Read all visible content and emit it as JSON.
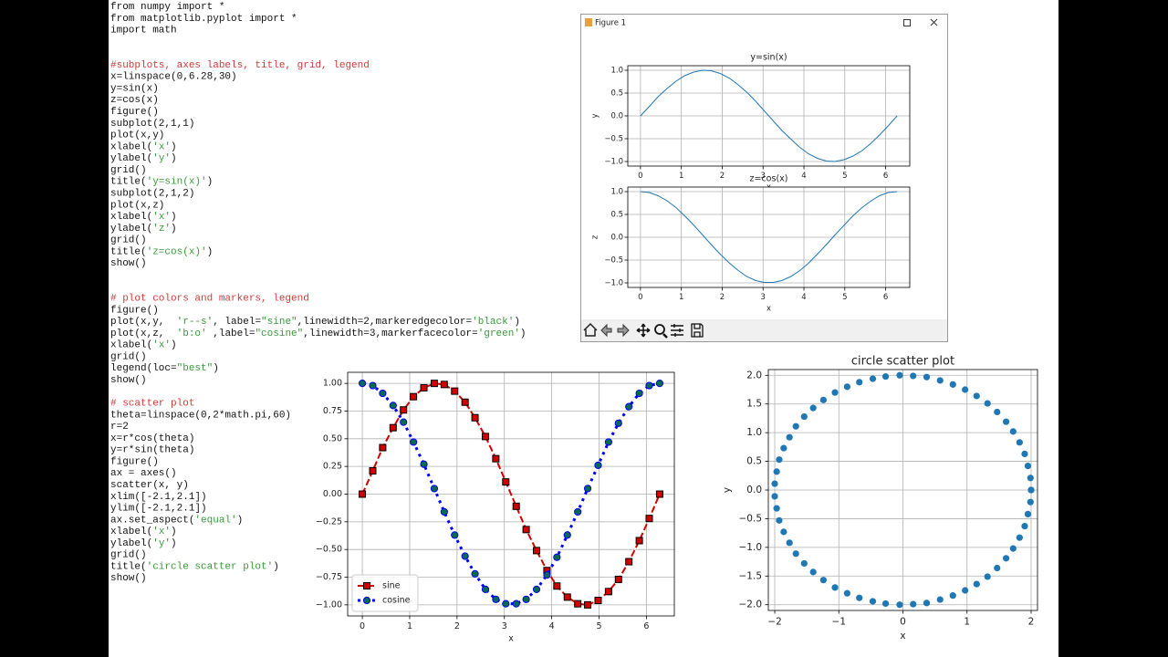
{
  "code": {
    "blocks": [
      [
        "from numpy import *",
        "from matplotlib.pyplot import *",
        "import math"
      ],
      [
        "#subplots, axes labels, title, grid, legend",
        "x=linspace(0,6.28,30)",
        "y=sin(x)",
        "z=cos(x)",
        "figure()",
        "subplot(2,1,1)",
        "plot(x,y)",
        "xlabel('x')",
        "ylabel('y')",
        "grid()",
        "title('y=sin(x)')",
        "subplot(2,1,2)",
        "plot(x,z)",
        "xlabel('x')",
        "ylabel('z')",
        "grid()",
        "title('z=cos(x)')",
        "show()"
      ],
      [
        "# plot colors and markers, legend",
        "figure()",
        "plot(x,y,  'r--s', label=\"sine\",linewidth=2,markeredgecolor='black')",
        "plot(x,z,  'b:o' ,label=\"cosine\",linewidth=3,markerfacecolor='green')",
        "xlabel('x')",
        "grid()",
        "legend(loc=\"best\")",
        "show()"
      ],
      [
        "# scatter plot",
        "theta=linspace(0,2*math.pi,60)",
        "r=2",
        "x=r*cos(theta)",
        "y=r*sin(theta)",
        "figure()",
        "ax = axes()",
        "scatter(x, y)",
        "xlim([-2.1,2.1])",
        "ylim([-2.1,2.1])",
        "ax.set_aspect('equal')",
        "xlabel('x')",
        "ylabel('y')",
        "grid()",
        "title('circle scatter plot')",
        "show()"
      ]
    ]
  },
  "window": {
    "title": "Figure 1"
  },
  "chart_data": [
    {
      "type": "line",
      "title": "y=sin(x)",
      "xlabel": "x",
      "ylabel": "y",
      "x": [
        0.0,
        0.22,
        0.43,
        0.65,
        0.87,
        1.08,
        1.3,
        1.52,
        1.73,
        1.95,
        2.17,
        2.38,
        2.6,
        2.82,
        3.03,
        3.25,
        3.46,
        3.68,
        3.9,
        4.11,
        4.33,
        4.55,
        4.76,
        4.98,
        5.2,
        5.41,
        5.63,
        5.85,
        6.06,
        6.28
      ],
      "series": [
        {
          "color": "#1f77b4",
          "linestyle": "solid",
          "linewidth": 1,
          "values": [
            0.0,
            0.21,
            0.42,
            0.6,
            0.76,
            0.88,
            0.96,
            1.0,
            0.99,
            0.93,
            0.83,
            0.69,
            0.52,
            0.32,
            0.11,
            -0.11,
            -0.32,
            -0.51,
            -0.69,
            -0.83,
            -0.93,
            -0.99,
            -1.0,
            -0.96,
            -0.88,
            -0.77,
            -0.61,
            -0.42,
            -0.22,
            0.0
          ]
        }
      ],
      "xlim": [
        -0.31,
        6.59
      ],
      "ylim": [
        -1.1,
        1.1
      ],
      "xticks": [
        0,
        1,
        2,
        3,
        4,
        5,
        6
      ],
      "yticks": [
        {
          "value": -1,
          "label": "−1.0"
        },
        {
          "value": -0.5,
          "label": "−0.5"
        },
        {
          "value": 0,
          "label": "0.0"
        },
        {
          "value": 0.5,
          "label": "0.5"
        },
        {
          "value": 1,
          "label": "1.0"
        }
      ],
      "grid": true
    },
    {
      "type": "line",
      "title": "z=cos(x)",
      "xlabel": "x",
      "ylabel": "z",
      "x": [
        0.0,
        0.22,
        0.43,
        0.65,
        0.87,
        1.08,
        1.3,
        1.52,
        1.73,
        1.95,
        2.17,
        2.38,
        2.6,
        2.82,
        3.03,
        3.25,
        3.46,
        3.68,
        3.9,
        4.11,
        4.33,
        4.55,
        4.76,
        4.98,
        5.2,
        5.41,
        5.63,
        5.85,
        6.06,
        6.28
      ],
      "series": [
        {
          "color": "#1f77b4",
          "linestyle": "solid",
          "linewidth": 1,
          "values": [
            1.0,
            0.98,
            0.91,
            0.8,
            0.65,
            0.47,
            0.27,
            0.05,
            -0.16,
            -0.37,
            -0.56,
            -0.72,
            -0.86,
            -0.95,
            -0.99,
            -0.99,
            -0.95,
            -0.86,
            -0.73,
            -0.57,
            -0.37,
            -0.16,
            0.05,
            0.26,
            0.47,
            0.64,
            0.79,
            0.91,
            0.98,
            1.0
          ]
        }
      ],
      "xlim": [
        -0.31,
        6.59
      ],
      "ylim": [
        -1.1,
        1.1
      ],
      "xticks": [
        0,
        1,
        2,
        3,
        4,
        5,
        6
      ],
      "yticks": [
        {
          "value": -1,
          "label": "−1.0"
        },
        {
          "value": -0.5,
          "label": "−0.5"
        },
        {
          "value": 0,
          "label": "0.0"
        },
        {
          "value": 0.5,
          "label": "0.5"
        },
        {
          "value": 1,
          "label": "1.0"
        }
      ],
      "grid": true
    },
    {
      "type": "line",
      "xlabel": "x",
      "legend": "lower left",
      "x": [
        0.0,
        0.22,
        0.43,
        0.65,
        0.87,
        1.08,
        1.3,
        1.52,
        1.73,
        1.95,
        2.17,
        2.38,
        2.6,
        2.82,
        3.03,
        3.25,
        3.46,
        3.68,
        3.9,
        4.11,
        4.33,
        4.55,
        4.76,
        4.98,
        5.2,
        5.41,
        5.63,
        5.85,
        6.06,
        6.28
      ],
      "series": [
        {
          "name": "sine",
          "color": "#d00000",
          "linestyle": "dashed",
          "linewidth": 2,
          "marker": "square",
          "markeredgecolor": "black",
          "values": [
            0.0,
            0.21,
            0.42,
            0.6,
            0.76,
            0.88,
            0.96,
            1.0,
            0.99,
            0.93,
            0.83,
            0.69,
            0.52,
            0.32,
            0.11,
            -0.11,
            -0.32,
            -0.51,
            -0.69,
            -0.83,
            -0.93,
            -0.99,
            -1.0,
            -0.96,
            -0.88,
            -0.77,
            -0.61,
            -0.42,
            -0.22,
            0.0
          ]
        },
        {
          "name": "cosine",
          "color": "#0000ff",
          "linestyle": "dotted",
          "linewidth": 3,
          "marker": "circle",
          "markerfacecolor": "#0a6a50",
          "values": [
            1.0,
            0.98,
            0.91,
            0.8,
            0.65,
            0.47,
            0.27,
            0.05,
            -0.16,
            -0.37,
            -0.56,
            -0.72,
            -0.86,
            -0.95,
            -0.99,
            -0.99,
            -0.95,
            -0.86,
            -0.73,
            -0.57,
            -0.37,
            -0.16,
            0.05,
            0.26,
            0.47,
            0.64,
            0.79,
            0.91,
            0.98,
            1.0
          ]
        }
      ],
      "xlim": [
        -0.31,
        6.59
      ],
      "ylim": [
        -1.1,
        1.1
      ],
      "xticks": [
        0,
        1,
        2,
        3,
        4,
        5,
        6
      ],
      "yticks": [
        {
          "value": -1,
          "label": "−1.00"
        },
        {
          "value": -0.75,
          "label": "−0.75"
        },
        {
          "value": -0.5,
          "label": "−0.50"
        },
        {
          "value": -0.25,
          "label": "−0.25"
        },
        {
          "value": 0,
          "label": "0.00"
        },
        {
          "value": 0.25,
          "label": "0.25"
        },
        {
          "value": 0.5,
          "label": "0.50"
        },
        {
          "value": 0.75,
          "label": "0.75"
        },
        {
          "value": 1,
          "label": "1.00"
        }
      ],
      "grid": true
    },
    {
      "type": "scatter",
      "title": "circle scatter plot",
      "xlabel": "x",
      "ylabel": "y",
      "color": "#1f77b4",
      "x": [
        2.0,
        1.99,
        1.95,
        1.9,
        1.82,
        1.72,
        1.61,
        1.47,
        1.32,
        1.15,
        0.97,
        0.78,
        0.58,
        0.37,
        0.16,
        -0.05,
        -0.27,
        -0.47,
        -0.68,
        -0.87,
        -1.06,
        -1.24,
        -1.4,
        -1.54,
        -1.67,
        -1.77,
        -1.86,
        -1.93,
        -1.97,
        -2.0,
        -2.0,
        -1.97,
        -1.93,
        -1.86,
        -1.77,
        -1.67,
        -1.54,
        -1.4,
        -1.24,
        -1.06,
        -0.87,
        -0.68,
        -0.47,
        -0.27,
        -0.05,
        0.16,
        0.37,
        0.58,
        0.78,
        0.97,
        1.15,
        1.32,
        1.47,
        1.61,
        1.72,
        1.82,
        1.9,
        1.95,
        1.99,
        2.0
      ],
      "values": [
        0.0,
        0.21,
        0.42,
        0.63,
        0.83,
        1.02,
        1.19,
        1.36,
        1.51,
        1.64,
        1.75,
        1.84,
        1.91,
        1.97,
        1.99,
        2.0,
        1.98,
        1.94,
        1.88,
        1.8,
        1.7,
        1.57,
        1.43,
        1.28,
        1.11,
        0.92,
        0.73,
        0.53,
        0.32,
        0.11,
        -0.11,
        -0.32,
        -0.53,
        -0.73,
        -0.92,
        -1.11,
        -1.28,
        -1.43,
        -1.57,
        -1.7,
        -1.8,
        -1.88,
        -1.94,
        -1.98,
        -2.0,
        -1.99,
        -1.97,
        -1.91,
        -1.84,
        -1.75,
        -1.64,
        -1.51,
        -1.36,
        -1.19,
        -1.02,
        -0.83,
        -0.63,
        -0.42,
        -0.21,
        0.0
      ],
      "xlim": [
        -2.1,
        2.1
      ],
      "ylim": [
        -2.1,
        2.1
      ],
      "xticks": [
        {
          "value": -2,
          "label": "−2"
        },
        {
          "value": -1,
          "label": "−1"
        },
        0,
        1,
        2
      ],
      "yticks": [
        {
          "value": -2,
          "label": "−2.0"
        },
        {
          "value": -1.5,
          "label": "−1.5"
        },
        {
          "value": -1,
          "label": "−1.0"
        },
        {
          "value": -0.5,
          "label": "−0.5"
        },
        {
          "value": 0,
          "label": "0.0"
        },
        {
          "value": 0.5,
          "label": "0.5"
        },
        {
          "value": 1,
          "label": "1.0"
        },
        {
          "value": 1.5,
          "label": "1.5"
        },
        {
          "value": 2,
          "label": "2.0"
        }
      ],
      "grid": true
    }
  ]
}
